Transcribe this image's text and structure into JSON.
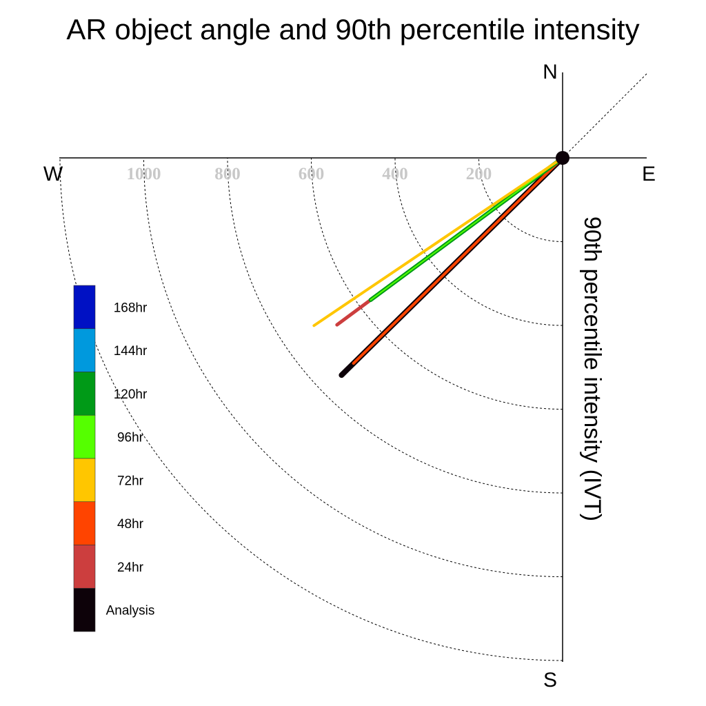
{
  "title": "AR object angle and 90th percentile intensity",
  "chart_data": {
    "type": "polar-line",
    "title": "AR object angle and 90th percentile intensity",
    "radial_label": "90th percentile intensity (IVT)",
    "directions": [
      "N",
      "E",
      "S",
      "W"
    ],
    "radial_ticks": [
      200,
      400,
      600,
      800,
      1000
    ],
    "radial_max": 1200,
    "grid": true,
    "legend_position": "left",
    "legend": [
      {
        "label": "168hr",
        "color": "#0011c4"
      },
      {
        "label": "144hr",
        "color": "#0099dd"
      },
      {
        "label": "120hr",
        "color": "#009a17"
      },
      {
        "label": "96hr",
        "color": "#55ff00"
      },
      {
        "label": "72hr",
        "color": "#ffc600"
      },
      {
        "label": "48hr",
        "color": "#ff4400"
      },
      {
        "label": "24hr",
        "color": "#cc3e3e"
      },
      {
        "label": "Analysis",
        "color": "#0d0209"
      }
    ],
    "series": [
      {
        "name": "Analysis",
        "angle_deg": 225.5,
        "intensity": 740,
        "color": "#0d0209",
        "width": 8
      },
      {
        "name": "48hr",
        "angle_deg": 225.5,
        "intensity": 700,
        "color": "#ff4400",
        "width": 4
      },
      {
        "name": "24hr",
        "angle_deg": 233.5,
        "intensity": 670,
        "color": "#cc3e3e",
        "width": 5
      },
      {
        "name": "120hr",
        "angle_deg": 233.5,
        "intensity": 570,
        "color": "#009a17",
        "width": 6
      },
      {
        "name": "96hr",
        "angle_deg": 233.5,
        "intensity": 570,
        "color": "#55ff00",
        "width": 2
      },
      {
        "name": "72hr",
        "angle_deg": 236,
        "intensity": 716,
        "color": "#ffc600",
        "width": 4
      }
    ]
  }
}
